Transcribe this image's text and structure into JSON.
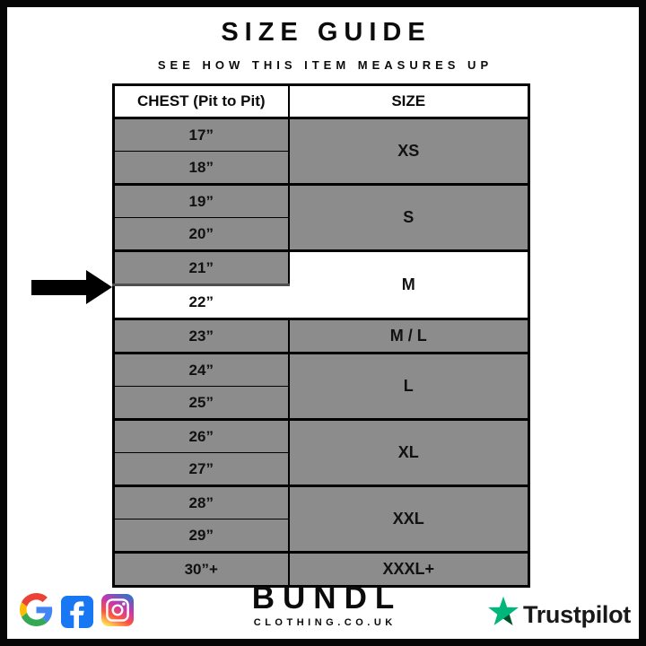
{
  "header": {
    "title": "SIZE GUIDE",
    "subtitle": "SEE HOW THIS ITEM MEASURES UP"
  },
  "table": {
    "col_chest": "CHEST (Pit to Pit)",
    "col_size": "SIZE",
    "groups": [
      {
        "size": "XS",
        "chests": [
          "17”",
          "18”"
        ]
      },
      {
        "size": "S",
        "chests": [
          "19”",
          "20”"
        ]
      },
      {
        "size": "M",
        "chests": [
          "21”",
          "22”"
        ]
      },
      {
        "size": "M / L",
        "chests": [
          "23”"
        ]
      },
      {
        "size": "L",
        "chests": [
          "24”",
          "25”"
        ]
      },
      {
        "size": "XL",
        "chests": [
          "26”",
          "27”"
        ]
      },
      {
        "size": "XXL",
        "chests": [
          "28”",
          "29”"
        ]
      },
      {
        "size": "XXXL+",
        "chests": [
          "30”+"
        ]
      }
    ],
    "highlighted_chest": "22”",
    "highlighted_size": "M"
  },
  "chart_data": {
    "type": "table",
    "title": "SIZE GUIDE",
    "subtitle": "SEE HOW THIS ITEM MEASURES UP",
    "columns": [
      "CHEST (Pit to Pit)",
      "SIZE"
    ],
    "rows": [
      [
        "17”",
        "XS"
      ],
      [
        "18”",
        "XS"
      ],
      [
        "19”",
        "S"
      ],
      [
        "20”",
        "S"
      ],
      [
        "21”",
        "M"
      ],
      [
        "22”",
        "M"
      ],
      [
        "23”",
        "M / L"
      ],
      [
        "24”",
        "L"
      ],
      [
        "25”",
        "L"
      ],
      [
        "26”",
        "XL"
      ],
      [
        "27”",
        "XL"
      ],
      [
        "28”",
        "XXL"
      ],
      [
        "29”",
        "XXL"
      ],
      [
        "30”+",
        "XXXL+"
      ]
    ],
    "highlighted_row": [
      "22”",
      "M"
    ],
    "legend_position": "none",
    "grid": true
  },
  "arrow": {
    "points_to": "22”"
  },
  "footer": {
    "brand": "BUNDL",
    "domain": "CLOTHING.CO.UK",
    "trustpilot": "Trustpilot",
    "social_icons": [
      "google-logo",
      "facebook-logo",
      "instagram-logo"
    ]
  },
  "colors": {
    "row_gray": "#8c8c8c",
    "highlight": "#ffffff",
    "frame_black": "#060606",
    "text_black": "#0b0b0b",
    "facebook_blue": "#1877f2",
    "trustpilot_green": "#00b67a",
    "trustpilot_dark_green": "#005128",
    "google_red": "#ea4335",
    "google_blue": "#4285f4",
    "google_yellow": "#fbbc05",
    "google_green": "#34a853",
    "instagram_gradient": [
      "#ffdd55",
      "#ff543e",
      "#c837ab",
      "#3771c8"
    ]
  }
}
